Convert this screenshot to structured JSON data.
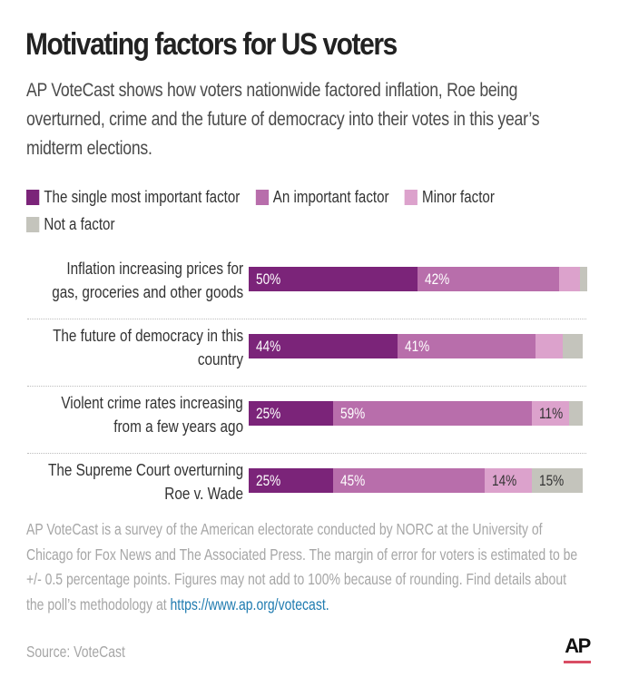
{
  "header": {
    "title": "Motivating factors for US voters",
    "subtitle": "AP VoteCast shows how voters nationwide factored inflation, Roe being overturned, crime and the future of democracy into their votes in this year’s midterm elections."
  },
  "colors": {
    "single_most_important": "#7b2479",
    "important": "#b86eab",
    "minor": "#dca2cc",
    "not_a_factor": "#c4c4bc"
  },
  "chart_data": {
    "type": "bar",
    "orientation": "horizontal",
    "stacked": true,
    "title": "Motivating factors for US voters",
    "xlabel": "",
    "ylabel": "",
    "xlim": [
      0,
      100
    ],
    "grid": false,
    "legend_position": "top",
    "categories": [
      [
        "Inflation increasing prices for",
        "gas, groceries and other goods"
      ],
      [
        "The future of democracy in this",
        "country"
      ],
      [
        "Violent crime rates increasing",
        "from a few years ago"
      ],
      [
        "The Supreme Court overturning",
        "Roe v. Wade"
      ]
    ],
    "series": [
      {
        "name": "The single most important factor",
        "color": "#7b2479",
        "label_color": "#ffffff",
        "values": [
          50,
          44,
          25,
          25
        ],
        "labels": [
          "50%",
          "44%",
          "25%",
          "25%"
        ]
      },
      {
        "name": "An important factor",
        "color": "#b86eab",
        "label_color": "#ffffff",
        "values": [
          42,
          41,
          59,
          45
        ],
        "labels": [
          "42%",
          "41%",
          "59%",
          "45%"
        ]
      },
      {
        "name": "Minor factor",
        "color": "#dca2cc",
        "label_color": "#333333",
        "values": [
          6,
          8,
          11,
          14
        ],
        "labels": [
          "",
          "",
          "11%",
          "14%"
        ]
      },
      {
        "name": "Not a factor",
        "color": "#c4c4bc",
        "label_color": "#333333",
        "values": [
          2,
          6,
          4,
          15
        ],
        "labels": [
          "",
          "",
          "",
          "15%"
        ]
      }
    ]
  },
  "notes": {
    "text": "AP VoteCast is a survey of the American electorate conducted by NORC at the University of Chicago for Fox News and The Associated Press. The margin of error for voters is estimated to be +/- 0.5 percentage points. Figures may not add to 100% because of rounding. Find details about the poll’s methodology at ",
    "link": "https://www.ap.org/votecast."
  },
  "source": "Source: VoteCast",
  "logo": {
    "text": "AP",
    "accent": "#d94d64"
  }
}
